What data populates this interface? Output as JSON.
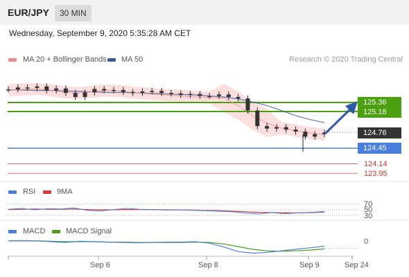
{
  "header": {
    "symbol": "EUR/JPY",
    "timeframe": "30 MIN"
  },
  "datetime": "Wednesday, September 9, 2020 5:35:28 AM CET",
  "credit": "Research © 2020 Trading Central",
  "colors": {
    "bollinger": "#f28b8b",
    "ma50": "#3a5a9c",
    "resistance": "#4aa010",
    "support": "#4a7fe0",
    "target_line": "#d43a3a",
    "price_tag": "#333333",
    "rsi": "#4a7fe0",
    "rsi_ma": "#d43a3a",
    "macd": "#4a7fe0",
    "macd_signal": "#4aa010",
    "arrow": "#2a5aa8"
  },
  "chart_data": [
    {
      "type": "candlestick",
      "legend": [
        "MA 20 + Bollinger Bands",
        "MA 50"
      ],
      "x_ticks": [
        "Sep 6",
        "Sep 8",
        "Sep 9",
        "Sep 24"
      ],
      "y_range": [
        123.8,
        125.9
      ],
      "levels": [
        {
          "value": 125.36,
          "label": "125.36",
          "kind": "resistance"
        },
        {
          "value": 125.18,
          "label": "125.18",
          "kind": "resistance"
        },
        {
          "value": 124.76,
          "label": "124.76",
          "kind": "last_price"
        },
        {
          "value": 124.45,
          "label": "124.45",
          "kind": "support"
        },
        {
          "value": 124.14,
          "label": "124.14",
          "kind": "target"
        },
        {
          "value": 123.95,
          "label": "123.95",
          "kind": "target"
        }
      ],
      "series": [
        {
          "name": "MA 50",
          "values": [
            125.61,
            125.61,
            125.6,
            125.6,
            125.59,
            125.58,
            125.57,
            125.56,
            125.56,
            125.55,
            125.54,
            125.53,
            125.52,
            125.51,
            125.49,
            125.47,
            125.43,
            125.37,
            125.3,
            125.2,
            125.1,
            125.02,
            124.96
          ]
        },
        {
          "name": "MA 20 + Bollinger Bands",
          "values": [
            125.6,
            125.62,
            125.63,
            125.6,
            125.56,
            125.55,
            125.58,
            125.6,
            125.58,
            125.55,
            125.53,
            125.51,
            125.49,
            125.47,
            125.46,
            125.45,
            125.3,
            125.1,
            124.95,
            124.85,
            124.8,
            124.75,
            124.72
          ]
        }
      ],
      "candles": [
        125.62,
        125.66,
        125.65,
        125.68,
        125.6,
        125.64,
        125.55,
        125.47,
        125.56,
        125.63,
        125.6,
        125.61,
        125.57,
        125.55,
        125.58,
        125.59,
        125.55,
        125.54,
        125.51,
        125.53,
        125.49,
        125.49,
        125.52,
        125.47,
        125.44,
        125.2,
        124.89,
        124.84,
        124.87,
        124.82,
        124.78,
        124.68,
        124.73,
        124.76
      ]
    },
    {
      "type": "line",
      "legend": [
        "RSI",
        "9MA"
      ],
      "y_ticks": [
        "70",
        "50",
        "30"
      ],
      "series": [
        {
          "name": "RSI",
          "values": [
            52,
            55,
            50,
            54,
            53,
            57,
            48,
            46,
            51,
            55,
            52,
            51,
            49,
            50,
            48,
            47,
            45,
            43,
            38,
            35,
            40,
            36,
            39,
            41,
            44
          ]
        },
        {
          "name": "9MA",
          "values": [
            51,
            52,
            53,
            52,
            52,
            53,
            51,
            50,
            50,
            51,
            51,
            51,
            50,
            50,
            49,
            48,
            47,
            45,
            43,
            41,
            40,
            39,
            39,
            40,
            42
          ]
        }
      ]
    },
    {
      "type": "line",
      "legend": [
        "MACD",
        "MACD Signal"
      ],
      "y_ticks": [
        "0"
      ],
      "series": [
        {
          "name": "MACD",
          "values": [
            0.02,
            0.03,
            0.02,
            0.0,
            -0.02,
            0.01,
            0.0,
            -0.01,
            -0.02,
            -0.03,
            -0.02,
            -0.01,
            -0.01,
            0.0,
            -0.04,
            -0.14,
            -0.26,
            -0.3,
            -0.28,
            -0.24,
            -0.2,
            -0.16,
            -0.12
          ]
        },
        {
          "name": "MACD Signal",
          "values": [
            0.02,
            0.02,
            0.02,
            0.01,
            0.0,
            0.0,
            0.0,
            -0.01,
            -0.01,
            -0.02,
            -0.02,
            -0.02,
            -0.02,
            -0.01,
            -0.02,
            -0.06,
            -0.13,
            -0.2,
            -0.24,
            -0.25,
            -0.24,
            -0.22,
            -0.19
          ]
        }
      ]
    }
  ]
}
